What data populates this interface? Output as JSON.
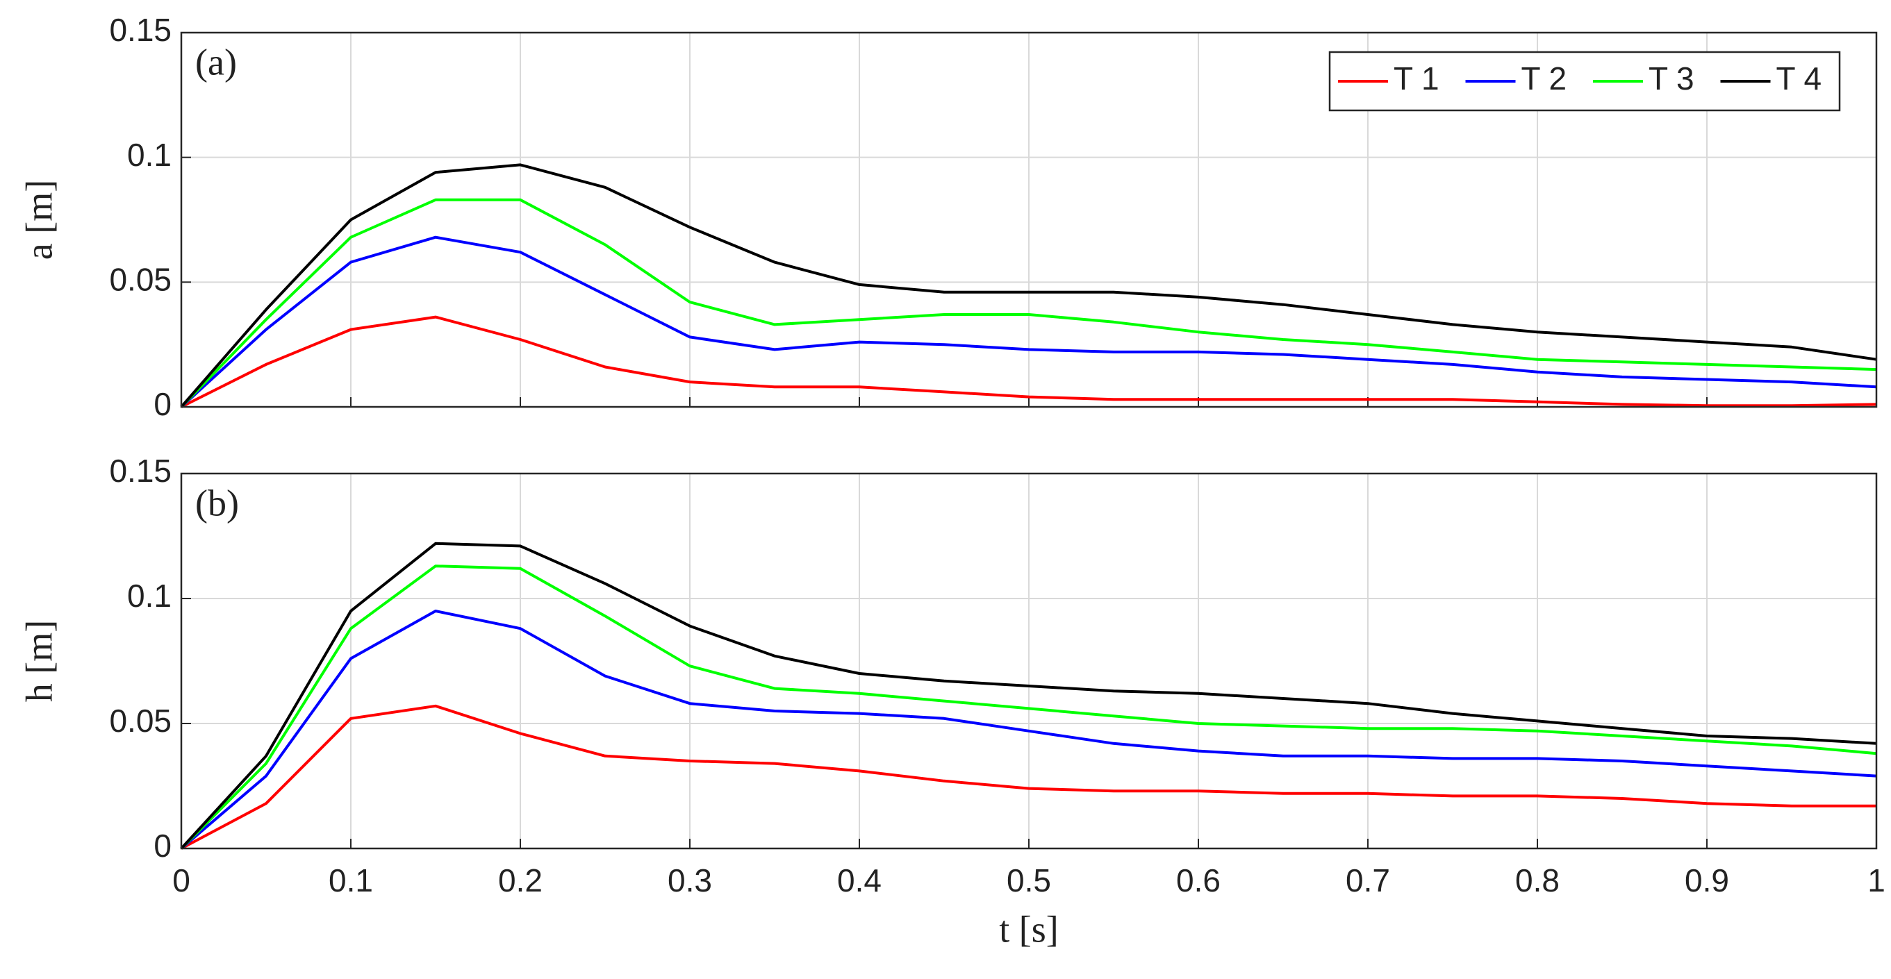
{
  "chart_data": [
    {
      "type": "line",
      "panel_label": "(a)",
      "ylabel": "a [m]",
      "grid": true,
      "legend": "upper right",
      "x": [
        0,
        0.05,
        0.1,
        0.15,
        0.2,
        0.25,
        0.3,
        0.35,
        0.4,
        0.45,
        0.5,
        0.55,
        0.6,
        0.65,
        0.7,
        0.75,
        0.8,
        0.85,
        0.9,
        0.95,
        1
      ],
      "xlim": [
        0,
        1
      ],
      "xticks": [
        0,
        0.1,
        0.2,
        0.3,
        0.4,
        0.5,
        0.6,
        0.7,
        0.8,
        0.9,
        1
      ],
      "ylim": [
        0,
        0.15
      ],
      "yticks": [
        0,
        0.05,
        0.1,
        0.15
      ],
      "series": [
        {
          "name": "T 1",
          "color": "#ff0000",
          "values": [
            0,
            0.017,
            0.031,
            0.036,
            0.027,
            0.016,
            0.01,
            0.008,
            0.008,
            0.006,
            0.004,
            0.003,
            0.003,
            0.003,
            0.003,
            0.003,
            0.002,
            0.001,
            0.0005,
            0.0005,
            0.001
          ]
        },
        {
          "name": "T 2",
          "color": "#0000ff",
          "values": [
            0,
            0.031,
            0.058,
            0.068,
            0.062,
            0.045,
            0.028,
            0.023,
            0.026,
            0.025,
            0.023,
            0.022,
            0.022,
            0.021,
            0.019,
            0.017,
            0.014,
            0.012,
            0.011,
            0.01,
            0.008
          ]
        },
        {
          "name": "T 3",
          "color": "#00ff00",
          "values": [
            0,
            0.035,
            0.068,
            0.083,
            0.083,
            0.065,
            0.042,
            0.033,
            0.035,
            0.037,
            0.037,
            0.034,
            0.03,
            0.027,
            0.025,
            0.022,
            0.019,
            0.018,
            0.017,
            0.016,
            0.015
          ]
        },
        {
          "name": "T 4",
          "color": "#000000",
          "values": [
            0,
            0.039,
            0.075,
            0.094,
            0.097,
            0.088,
            0.072,
            0.058,
            0.049,
            0.046,
            0.046,
            0.046,
            0.044,
            0.041,
            0.037,
            0.033,
            0.03,
            0.028,
            0.026,
            0.024,
            0.019
          ]
        }
      ]
    },
    {
      "type": "line",
      "panel_label": "(b)",
      "ylabel": "h [m]",
      "xlabel": "t [s]",
      "grid": true,
      "x": [
        0,
        0.05,
        0.1,
        0.15,
        0.2,
        0.25,
        0.3,
        0.35,
        0.4,
        0.45,
        0.5,
        0.55,
        0.6,
        0.65,
        0.7,
        0.75,
        0.8,
        0.85,
        0.9,
        0.95,
        1
      ],
      "xlim": [
        0,
        1
      ],
      "xticks": [
        0,
        0.1,
        0.2,
        0.3,
        0.4,
        0.5,
        0.6,
        0.7,
        0.8,
        0.9,
        1
      ],
      "ylim": [
        0,
        0.15
      ],
      "yticks": [
        0,
        0.05,
        0.1,
        0.15
      ],
      "series": [
        {
          "color": "#ff0000",
          "values": [
            0,
            0.018,
            0.052,
            0.057,
            0.046,
            0.037,
            0.035,
            0.034,
            0.031,
            0.027,
            0.024,
            0.023,
            0.023,
            0.022,
            0.022,
            0.021,
            0.021,
            0.02,
            0.018,
            0.017,
            0.017
          ]
        },
        {
          "color": "#0000ff",
          "values": [
            0,
            0.029,
            0.076,
            0.095,
            0.088,
            0.069,
            0.058,
            0.055,
            0.054,
            0.052,
            0.047,
            0.042,
            0.039,
            0.037,
            0.037,
            0.036,
            0.036,
            0.035,
            0.033,
            0.031,
            0.029
          ]
        },
        {
          "color": "#00ff00",
          "values": [
            0,
            0.034,
            0.088,
            0.113,
            0.112,
            0.093,
            0.073,
            0.064,
            0.062,
            0.059,
            0.056,
            0.053,
            0.05,
            0.049,
            0.048,
            0.048,
            0.047,
            0.045,
            0.043,
            0.041,
            0.038
          ]
        },
        {
          "color": "#000000",
          "values": [
            0,
            0.037,
            0.095,
            0.122,
            0.121,
            0.106,
            0.089,
            0.077,
            0.07,
            0.067,
            0.065,
            0.063,
            0.062,
            0.06,
            0.058,
            0.054,
            0.051,
            0.048,
            0.045,
            0.044,
            0.042
          ]
        }
      ]
    }
  ]
}
